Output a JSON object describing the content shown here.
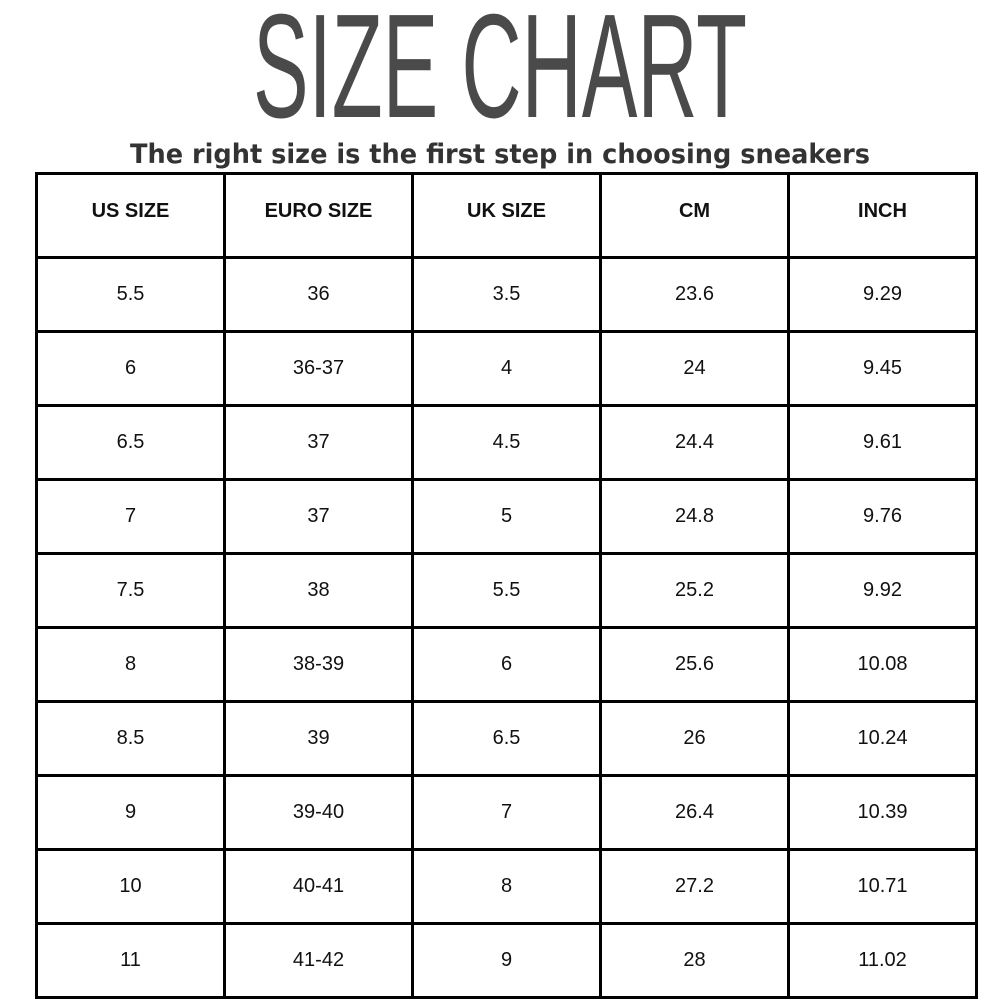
{
  "title": "SIZE CHART",
  "subtitle": "The right size is the first step in choosing sneakers",
  "colors": {
    "title": "#4a4a4a",
    "subtitle": "#333333",
    "border": "#000000"
  },
  "headers": [
    "US SIZE",
    "EURO SIZE",
    "UK SIZE",
    "CM",
    "INCH"
  ],
  "rows": [
    [
      "5.5",
      "36",
      "3.5",
      "23.6",
      "9.29"
    ],
    [
      "6",
      "36-37",
      "4",
      "24",
      "9.45"
    ],
    [
      "6.5",
      "37",
      "4.5",
      "24.4",
      "9.61"
    ],
    [
      "7",
      "37",
      "5",
      "24.8",
      "9.76"
    ],
    [
      "7.5",
      "38",
      "5.5",
      "25.2",
      "9.92"
    ],
    [
      "8",
      "38-39",
      "6",
      "25.6",
      "10.08"
    ],
    [
      "8.5",
      "39",
      "6.5",
      "26",
      "10.24"
    ],
    [
      "9",
      "39-40",
      "7",
      "26.4",
      "10.39"
    ],
    [
      "10",
      "40-41",
      "8",
      "27.2",
      "10.71"
    ],
    [
      "11",
      "41-42",
      "9",
      "28",
      "11.02"
    ]
  ]
}
